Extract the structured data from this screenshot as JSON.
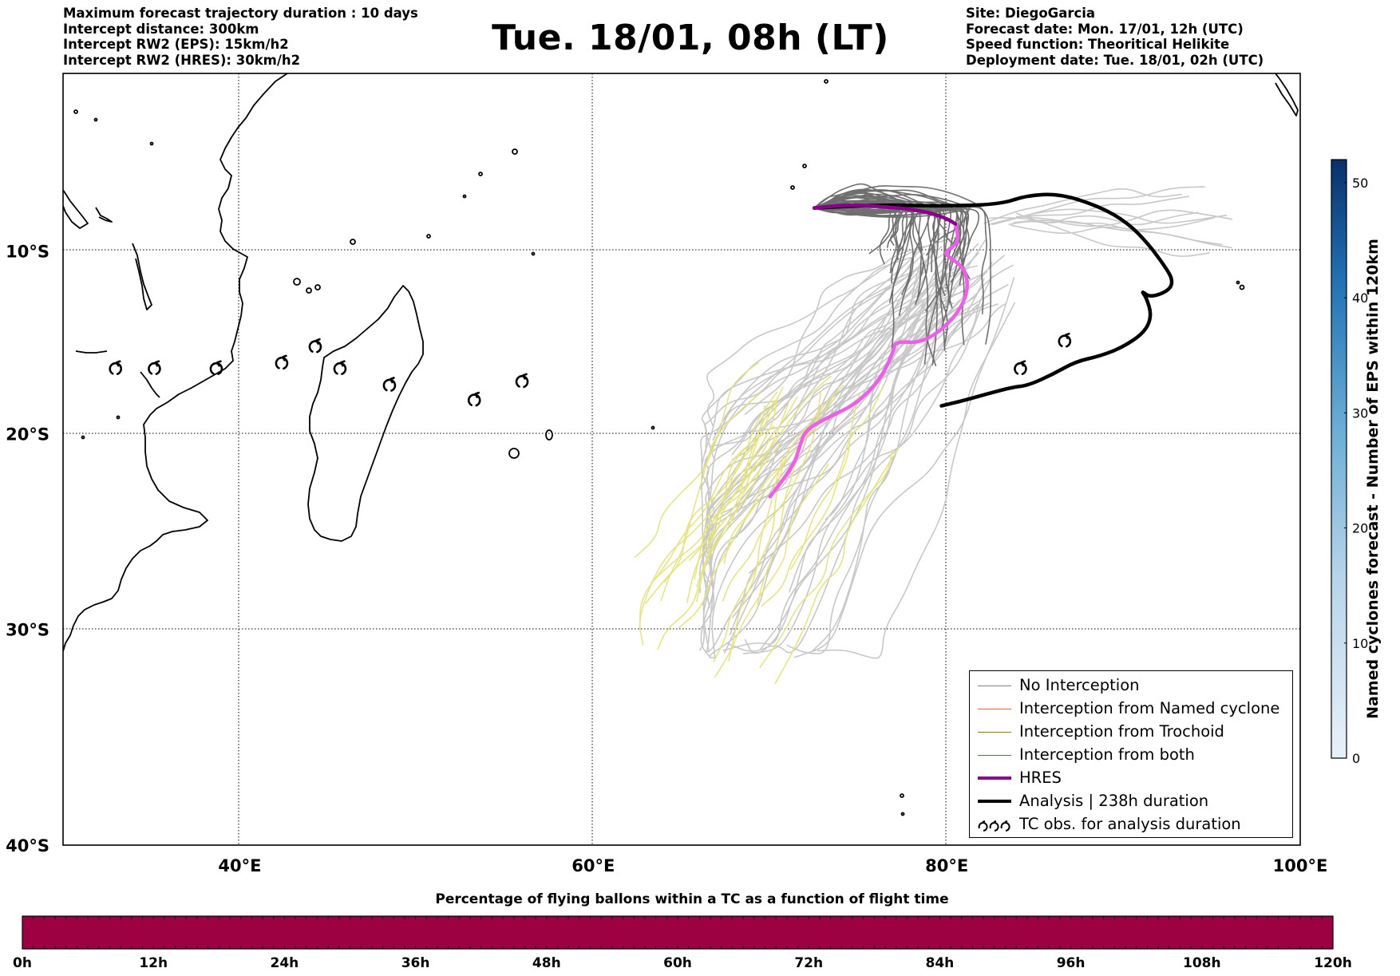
{
  "header_left": [
    "Maximum forecast trajectory duration : 10 days",
    "Intercept distance: 300km",
    "Intercept RW2 (EPS):  15km/h2",
    "Intercept RW2 (HRES): 30km/h2"
  ],
  "title": "Tue. 18/01, 08h (LT)",
  "header_right": [
    "Site: DiegoGarcia",
    "Forecast date: Mon. 17/01, 12h (UTC)",
    "Speed function: Theoritical Helikite",
    "Deployment date: Tue. 18/01, 02h (UTC)"
  ],
  "map": {
    "lon_range": [
      30,
      100
    ],
    "lat_range": [
      -40,
      0
    ],
    "lon_ticks": [
      {
        "value": 40,
        "label": "40°E"
      },
      {
        "value": 60,
        "label": "60°E"
      },
      {
        "value": 80,
        "label": "80°E"
      },
      {
        "value": 100,
        "label": "100°E"
      }
    ],
    "lat_ticks": [
      {
        "value": -10,
        "label": "10°S"
      },
      {
        "value": -20,
        "label": "20°S"
      },
      {
        "value": -30,
        "label": "30°S"
      },
      {
        "value": -40,
        "label": "40°S"
      }
    ],
    "grid": "dotted"
  },
  "legend": [
    {
      "label": "No Interception",
      "color": "#808080",
      "style": "thin"
    },
    {
      "label": "Interception from Named cyclone",
      "color": "#e8602a",
      "style": "thin"
    },
    {
      "label": "Interception from Trochoid",
      "color": "#8a7a1f",
      "style": "thin"
    },
    {
      "label": "Interception from both",
      "color": "#1f9a1f",
      "style": "thin"
    },
    {
      "label": "HRES",
      "color": "#8b008b",
      "style": "thick"
    },
    {
      "label": "Analysis | 238h duration",
      "color": "#000000",
      "style": "thick"
    },
    {
      "label": "TC obs. for analysis duration",
      "color": "#000000",
      "style": "cyclone-symbols"
    }
  ],
  "right_colorbar": {
    "title": "Named cyclones forecast - Number of EPS within 120km",
    "range": [
      0,
      52
    ],
    "ticks": [
      "0",
      "10",
      "20",
      "30",
      "40",
      "50"
    ],
    "colors": [
      "#e8f1fa",
      "#08306b"
    ]
  },
  "bottom_colorbar": {
    "title": "Percentage of flying ballons within a TC as a function of flight time",
    "color": "#9e0142",
    "tick_labels": [
      "0h",
      "12h",
      "24h",
      "36h",
      "48h",
      "60h",
      "72h",
      "84h",
      "96h",
      "108h",
      "120h"
    ]
  },
  "tc_observation_symbols": [
    {
      "lon": 32.9,
      "lat": -16.5
    },
    {
      "lon": 35.1,
      "lat": -16.5
    },
    {
      "lon": 38.6,
      "lat": -16.5
    },
    {
      "lon": 42.3,
      "lat": -16.2
    },
    {
      "lon": 44.2,
      "lat": -15.3
    },
    {
      "lon": 45.6,
      "lat": -16.5
    },
    {
      "lon": 48.4,
      "lat": -17.4
    },
    {
      "lon": 53.2,
      "lat": -18.2
    },
    {
      "lon": 55.9,
      "lat": -17.2
    },
    {
      "lon": 84.1,
      "lat": -16.5
    },
    {
      "lon": 86.6,
      "lat": -15.0
    }
  ],
  "hres_track": [
    [
      70.0,
      -23.3
    ],
    [
      71.3,
      -21.8
    ],
    [
      71.7,
      -20.6
    ],
    [
      72.0,
      -19.8
    ],
    [
      73.3,
      -19.1
    ],
    [
      74.9,
      -18.4
    ],
    [
      76.3,
      -17.0
    ],
    [
      77.0,
      -15.5
    ],
    [
      77.1,
      -15.0
    ],
    [
      78.6,
      -15.1
    ],
    [
      80.2,
      -14.0
    ],
    [
      81.2,
      -12.5
    ],
    [
      81.1,
      -11.0
    ],
    [
      79.9,
      -10.2
    ],
    [
      80.0,
      -10.0
    ],
    [
      80.7,
      -9.5
    ],
    [
      80.5,
      -8.5
    ],
    [
      79.5,
      -7.8
    ],
    [
      75.0,
      -7.4
    ],
    [
      73.5,
      -7.5
    ],
    [
      72.5,
      -7.6
    ]
  ],
  "analysis_track": [
    [
      72.5,
      -7.6
    ],
    [
      76.0,
      -7.4
    ],
    [
      79.5,
      -7.5
    ],
    [
      83.0,
      -7.4
    ],
    [
      84.5,
      -6.9
    ],
    [
      86.4,
      -6.8
    ],
    [
      88.6,
      -7.5
    ],
    [
      90.2,
      -8.4
    ],
    [
      91.4,
      -9.6
    ],
    [
      92.3,
      -10.8
    ],
    [
      92.8,
      -11.6
    ],
    [
      92.6,
      -12.2
    ],
    [
      91.5,
      -12.6
    ],
    [
      91.0,
      -12.2
    ],
    [
      91.3,
      -12.6
    ],
    [
      91.6,
      -13.6
    ],
    [
      91.2,
      -14.5
    ],
    [
      90.0,
      -15.3
    ],
    [
      88.7,
      -15.8
    ],
    [
      87.3,
      -16.1
    ],
    [
      86.0,
      -16.8
    ],
    [
      84.6,
      -17.4
    ],
    [
      83.7,
      -17.5
    ],
    [
      82.5,
      -17.8
    ],
    [
      81.0,
      -18.2
    ],
    [
      79.7,
      -18.5
    ]
  ]
}
